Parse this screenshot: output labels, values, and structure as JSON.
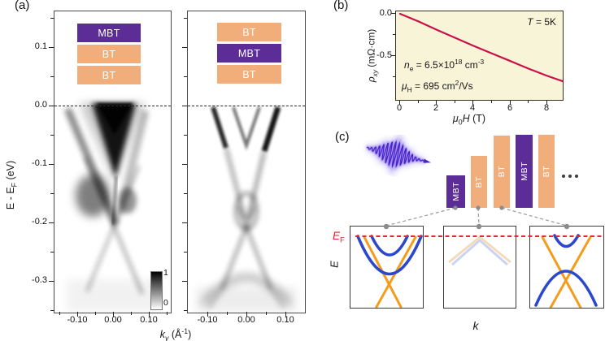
{
  "colors": {
    "mbt_purple": "#5c2d96",
    "bt_orange": "#f1ae7b",
    "panel_b_background": "#f8f4d8",
    "hall_curve_red": "#cb1049",
    "ef_dashed_red": "#e0282f",
    "band_blue": "#2b48cd",
    "band_orange": "#f49c1c",
    "faded_band_blue": "#bfc8ec",
    "faded_band_orange": "#f0d3ae"
  },
  "panel_a": {
    "label": "(a)",
    "y_label": {
      "pre": "E - E",
      "sub": "F",
      "post": " (eV)"
    },
    "x_label": {
      "pre": "k",
      "sub": "y",
      "post": " (Å",
      "sup": "-1",
      "end": ")"
    },
    "y_ticks": [
      "0.1",
      "0.0",
      "-0.1",
      "-0.2",
      "-0.3"
    ],
    "left_plot": {
      "x_ticks": [
        "-0.10",
        "0.00",
        "0.10"
      ],
      "stack": [
        {
          "label": "MBT"
        },
        {
          "label": "BT"
        },
        {
          "label": "BT"
        }
      ]
    },
    "right_plot": {
      "x_ticks": [
        "-0.10",
        "0.00",
        "0.10"
      ],
      "stack": [
        {
          "label": "BT"
        },
        {
          "label": "MBT"
        },
        {
          "label": "BT"
        }
      ]
    },
    "colorbar": {
      "max": "1",
      "min": "0"
    }
  },
  "panel_b": {
    "label": "(b)",
    "temperature": {
      "var": "T",
      "rest": " = 5K"
    },
    "y_label": {
      "pre": "ρ",
      "sub": "xy",
      "post": " (mΩ·cm)"
    },
    "x_label": {
      "mu": "μ",
      "sub": "0",
      "h": "H",
      "post": " (T)"
    },
    "y_ticks": [
      "0.0",
      "-0.5"
    ],
    "x_ticks": [
      "0",
      "2",
      "4",
      "6",
      "8"
    ],
    "carrier_density": {
      "var": "n",
      "sub": "e",
      "mid": " = 6.5×10",
      "sup": "18",
      "unit": " cm",
      "unit_sup": "-3"
    },
    "mobility": {
      "var": "μ",
      "sub": "H",
      "mid": " = 695 cm",
      "sup": "2",
      "rest": "/Vs"
    }
  },
  "panel_c": {
    "label": "(c)",
    "stack": [
      {
        "label": "MBT",
        "material": "MBT"
      },
      {
        "label": "BT",
        "material": "BT"
      },
      {
        "label": "BT",
        "material": "BT"
      },
      {
        "label": "MBT",
        "material": "MBT"
      },
      {
        "label": "BT",
        "material": "BT"
      }
    ],
    "ef_label": {
      "pre": "E",
      "sub": "F"
    },
    "e_axis_label": "E",
    "k_axis_label": "k"
  },
  "chart_data": [
    {
      "id": "arpes-left",
      "type": "heatmap",
      "title": "ARPES band map, MBT/BT/BT stacking (MBT-terminated)",
      "xlabel": "k_y (Å^-1)",
      "ylabel": "E - E_F (eV)",
      "x_ticks": [
        -0.1,
        0.0,
        0.1
      ],
      "y_ticks": [
        0.1,
        0.0,
        -0.1,
        -0.2,
        -0.3
      ],
      "xlim": [
        -0.16,
        0.16
      ],
      "ylim": [
        -0.35,
        0.16
      ],
      "colorbar": {
        "min": 0,
        "max": 1
      },
      "stack": [
        "MBT",
        "BT",
        "BT"
      ],
      "features": [
        "dark filled electron pocket reaching E_F between k = -0.05 and 0.02",
        "strong valence-band intensity -0.1 to -0.15 eV",
        "Dirac-like band crossing near -0.2 eV at k = 0",
        "faint V-shaped bands extending to -0.35 eV"
      ]
    },
    {
      "id": "arpes-right",
      "type": "heatmap",
      "title": "ARPES band map, BT/MBT/BT stacking (BT-terminated)",
      "xlabel": "k_y (Å^-1)",
      "ylabel": "E - E_F (eV)",
      "x_ticks": [
        -0.1,
        0.0,
        0.1
      ],
      "y_ticks": [
        0.1,
        0.0,
        -0.1,
        -0.2,
        -0.3
      ],
      "xlim": [
        -0.15,
        0.15
      ],
      "ylim": [
        -0.35,
        0.16
      ],
      "stack": [
        "BT",
        "MBT",
        "BT"
      ],
      "features": [
        "sharp X-shaped linear bands from E_F at k = ±0.08",
        "small electron V at k = 0 with bottom near -0.065 eV",
        "elliptical hybridization pocket around -0.15 eV",
        "band crossing near -0.21 eV, broad hole band below -0.28 eV"
      ]
    },
    {
      "id": "hall-resistivity",
      "type": "line",
      "title": "Hall resistivity vs magnetic field",
      "xlabel": "μ0H (T)",
      "ylabel": "ρxy (mΩ·cm)",
      "x": [
        0,
        1,
        2,
        3,
        4,
        5,
        6,
        7,
        8,
        9
      ],
      "y": [
        0,
        -0.09,
        -0.19,
        -0.285,
        -0.38,
        -0.47,
        -0.56,
        -0.65,
        -0.735,
        -0.81
      ],
      "xlim": [
        0,
        9.2
      ],
      "ylim": [
        -1.0,
        0.05
      ],
      "x_ticks": [
        0,
        2,
        4,
        6,
        8
      ],
      "y_ticks": [
        0.0,
        -0.5
      ],
      "line_color": "#cb1049",
      "annotations": [
        "T = 5K",
        "n_e = 6.5×10^18 cm^-3",
        "μ_H = 695 cm^2/Vs"
      ]
    }
  ]
}
